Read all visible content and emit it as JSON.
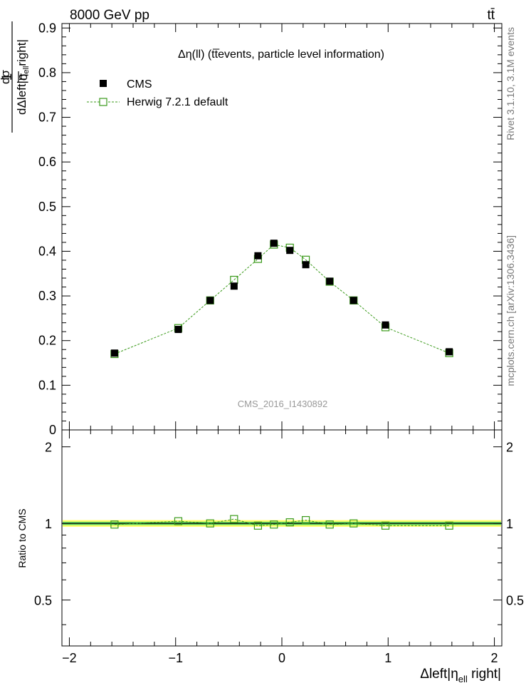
{
  "header": {
    "energy_label": "8000 GeV pp",
    "process_label": "tt̄"
  },
  "side_labels": {
    "rivet": "Rivet 3.1.10,  3.1M events",
    "mcplots": "mcplots.cern.ch [arXiv:1306.3436]"
  },
  "colors": {
    "data": "#000000",
    "mc": "#3a9a1a",
    "band_outer": "#ffff66",
    "band_inner": "#66dd66"
  },
  "chart_data": [
    {
      "type": "scatter",
      "panel": "main",
      "title": "Δη(ll) (tt̅events, particle level information)",
      "watermark": "CMS_2016_I1430892",
      "xlabel": "Δleft|η_ell right|",
      "ylabel": "1/σ dσ/dΔleft|η_ell right|",
      "xlim": [
        -2.07,
        2.07
      ],
      "ylim": [
        0,
        0.91
      ],
      "xticks": [
        -2,
        -1,
        0,
        1,
        2
      ],
      "xtick_labels": [
        "−2",
        "−1",
        "0",
        "1",
        "2"
      ],
      "yticks": [
        0,
        0.1,
        0.2,
        0.3,
        0.4,
        0.5,
        0.6,
        0.7,
        0.8,
        0.9
      ],
      "ytick_labels": [
        "0",
        "0.1",
        "0.2",
        "0.3",
        "0.4",
        "0.5",
        "0.6",
        "0.7",
        "0.8",
        "0.9"
      ],
      "legend_position": "top-left",
      "x": [
        -1.575,
        -0.975,
        -0.675,
        -0.45,
        -0.225,
        -0.075,
        0.075,
        0.225,
        0.45,
        0.675,
        0.975,
        1.575
      ],
      "series": [
        {
          "name": "CMS",
          "style": "filled-square",
          "values": [
            0.172,
            0.225,
            0.29,
            0.322,
            0.39,
            0.418,
            0.402,
            0.37,
            0.333,
            0.29,
            0.235,
            0.175
          ]
        },
        {
          "name": "Herwig 7.2.1 default",
          "style": "open-square-dashed",
          "values": [
            0.17,
            0.228,
            0.29,
            0.336,
            0.383,
            0.415,
            0.408,
            0.381,
            0.332,
            0.29,
            0.23,
            0.172
          ]
        }
      ]
    },
    {
      "type": "line",
      "panel": "ratio",
      "ylabel": "Ratio to CMS",
      "xlim": [
        -2.07,
        2.07
      ],
      "ylim": [
        0.33,
        2.33
      ],
      "yticks": [
        0.5,
        1,
        2
      ],
      "ytick_labels": [
        "0.5",
        "1",
        "2"
      ],
      "band_outer": [
        0.97,
        1.03
      ],
      "band_inner": [
        0.985,
        1.015
      ],
      "x": [
        -1.575,
        -0.975,
        -0.675,
        -0.45,
        -0.225,
        -0.075,
        0.075,
        0.225,
        0.45,
        0.675,
        0.975,
        1.575
      ],
      "series": [
        {
          "name": "Herwig 7.2.1 default / CMS",
          "values": [
            0.99,
            1.02,
            1.0,
            1.04,
            0.98,
            0.99,
            1.01,
            1.03,
            0.99,
            1.0,
            0.98,
            0.98
          ]
        }
      ]
    }
  ]
}
